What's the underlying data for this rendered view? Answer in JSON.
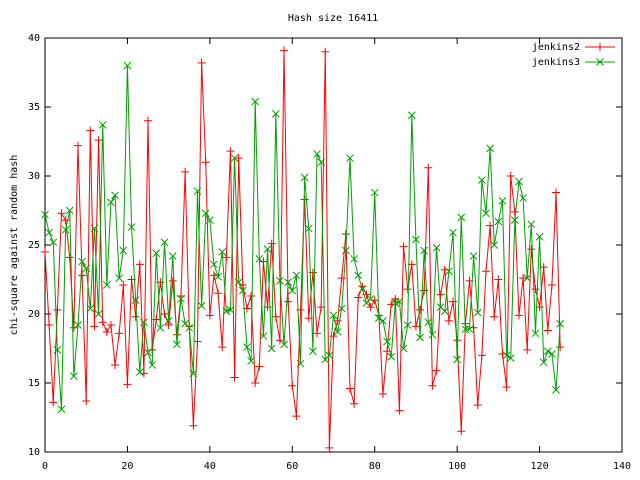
{
  "chart_data": {
    "type": "line",
    "title": "Hash size 16411",
    "ylabel": "chi-square against random hash",
    "x": [
      0,
      1,
      2,
      3,
      4,
      5,
      6,
      7,
      8,
      9,
      10,
      11,
      12,
      13,
      14,
      15,
      16,
      17,
      18,
      19,
      20,
      21,
      22,
      23,
      24,
      25,
      26,
      27,
      28,
      29,
      30,
      31,
      32,
      33,
      34,
      35,
      36,
      37,
      38,
      39,
      40,
      41,
      42,
      43,
      44,
      45,
      46,
      47,
      48,
      49,
      50,
      51,
      52,
      53,
      54,
      55,
      56,
      57,
      58,
      59,
      60,
      61,
      62,
      63,
      64,
      65,
      66,
      67,
      68,
      69,
      70,
      71,
      72,
      73,
      74,
      75,
      76,
      77,
      78,
      79,
      80,
      81,
      82,
      83,
      84,
      85,
      86,
      87,
      88,
      89,
      90,
      91,
      92,
      93,
      94,
      95,
      96,
      97,
      98,
      99,
      100,
      101,
      102,
      103,
      104,
      105,
      106,
      107,
      108,
      109,
      110,
      111,
      112,
      113,
      114,
      115,
      116,
      117,
      118,
      119,
      120,
      121,
      122,
      123,
      124,
      125
    ],
    "series": [
      {
        "name": "jenkins2",
        "color": "#ff0000",
        "values": [
          24.5,
          19.2,
          13.6,
          20.3,
          27.3,
          26.8,
          24.1,
          19.0,
          32.2,
          22.8,
          13.7,
          33.3,
          19.1,
          32.6,
          19.4,
          18.7,
          19.2,
          16.3,
          18.6,
          22.1,
          14.9,
          22.5,
          19.8,
          23.6,
          15.7,
          34.0,
          17.4,
          19.6,
          22.3,
          20.0,
          19.2,
          22.4,
          18.5,
          21.3,
          30.3,
          19.1,
          11.9,
          18.0,
          38.2,
          31.0,
          19.9,
          22.8,
          21.5,
          17.6,
          24.1,
          31.8,
          15.4,
          31.3,
          22.1,
          20.4,
          21.3,
          15.0,
          16.2,
          23.8,
          20.5,
          25.1,
          19.8,
          18.1,
          39.1,
          20.9,
          14.8,
          12.6,
          20.3,
          28.3,
          19.7,
          23.0,
          18.6,
          20.5,
          39.0,
          10.3,
          18.4,
          19.5,
          22.6,
          25.8,
          14.6,
          13.5,
          21.2,
          22.0,
          21.4,
          20.5,
          21.0,
          19.9,
          14.2,
          17.3,
          20.7,
          21.1,
          13.0,
          24.9,
          21.8,
          23.6,
          19.1,
          20.3,
          21.7,
          30.6,
          14.8,
          15.9,
          21.4,
          23.2,
          19.5,
          20.9,
          18.1,
          11.5,
          19.3,
          22.4,
          19.0,
          13.4,
          17.0,
          23.1,
          26.4,
          19.8,
          22.5,
          17.1,
          14.7,
          30.0,
          27.4,
          19.9,
          22.6,
          17.4,
          24.7,
          21.8,
          20.5,
          23.4,
          18.8,
          22.1,
          28.8,
          17.6
        ]
      },
      {
        "name": "jenkins3",
        "color": "#00a000",
        "values": [
          27.2,
          25.9,
          25.2,
          17.4,
          13.1,
          26.1,
          27.5,
          15.5,
          19.2,
          23.8,
          23.3,
          20.4,
          26.2,
          20.0,
          33.7,
          22.1,
          28.1,
          28.6,
          22.6,
          24.6,
          38.0,
          26.3,
          21.0,
          15.8,
          19.4,
          17.2,
          16.3,
          24.4,
          19.0,
          25.2,
          19.5,
          24.2,
          17.8,
          21.1,
          19.3,
          19.0,
          15.7,
          28.9,
          20.6,
          27.3,
          26.8,
          23.6,
          22.7,
          24.5,
          20.2,
          20.3,
          31.3,
          22.3,
          21.7,
          17.6,
          16.6,
          35.4,
          24.0,
          18.4,
          24.7,
          17.5,
          34.5,
          22.4,
          17.8,
          22.3,
          21.7,
          22.8,
          16.4,
          29.9,
          26.2,
          17.3,
          31.6,
          31.0,
          16.7,
          17.0,
          19.9,
          18.7,
          20.4,
          24.6,
          31.3,
          24.0,
          22.8,
          21.8,
          20.8,
          21.1,
          28.8,
          19.7,
          19.5,
          18.0,
          16.9,
          20.8,
          20.9,
          17.5,
          19.2,
          34.4,
          25.4,
          18.3,
          24.6,
          19.4,
          18.5,
          24.8,
          20.5,
          20.2,
          23.1,
          25.9,
          16.7,
          27.0,
          18.9,
          18.9,
          24.2,
          20.1,
          29.7,
          27.3,
          32.0,
          25.0,
          26.7,
          28.2,
          17.0,
          16.8,
          26.8,
          29.6,
          28.4,
          22.6,
          26.5,
          18.6,
          25.6,
          16.5,
          17.3,
          17.1,
          14.5,
          19.3
        ]
      }
    ],
    "xlim": [
      0,
      140
    ],
    "xticks": [
      0,
      20,
      40,
      60,
      80,
      100,
      120,
      140
    ],
    "ylim": [
      10,
      40
    ],
    "yticks": [
      10,
      15,
      20,
      25,
      30,
      35,
      40
    ],
    "legend": "top-right"
  }
}
